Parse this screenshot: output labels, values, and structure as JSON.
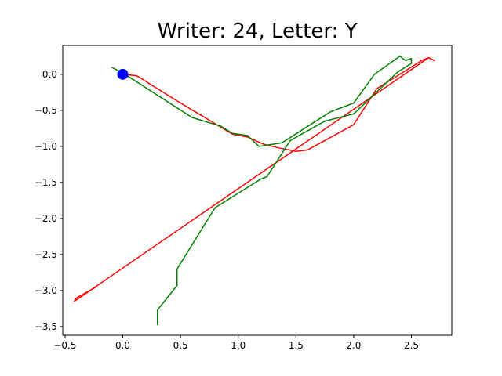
{
  "chart_data": {
    "type": "line",
    "title": "Writer: 24, Letter: Y",
    "xlabel": "",
    "ylabel": "",
    "xlim": [
      -0.52,
      2.85
    ],
    "ylim": [
      -3.62,
      0.4
    ],
    "grid": false,
    "x_ticks": [
      -0.5,
      0.0,
      0.5,
      1.0,
      1.5,
      2.0,
      2.5
    ],
    "x_tick_labels": [
      "−0.5",
      "0.0",
      "0.5",
      "1.0",
      "1.5",
      "2.0",
      "2.5"
    ],
    "y_ticks": [
      0.0,
      -0.5,
      -1.0,
      -1.5,
      -2.0,
      -2.5,
      -3.0,
      -3.5
    ],
    "y_tick_labels": [
      "0.0",
      "−0.5",
      "−1.0",
      "−1.5",
      "−2.0",
      "−2.5",
      "−3.0",
      "−3.5"
    ],
    "start_marker": {
      "x": 0.0,
      "y": 0.0,
      "color": "#0000ff"
    },
    "series": [
      {
        "color": "#ff0000",
        "x": [
          0.0,
          0.12,
          0.45,
          0.95,
          1.08,
          1.22,
          1.35,
          1.5,
          1.6,
          2.0,
          2.2,
          2.6,
          2.65,
          2.7,
          2.65,
          -0.42,
          -0.4,
          -0.23
        ],
        "y": [
          0.0,
          -0.02,
          -0.35,
          -0.83,
          -0.87,
          -0.97,
          -1.02,
          -1.07,
          -1.05,
          -0.7,
          -0.2,
          0.2,
          0.23,
          0.19,
          0.23,
          -3.15,
          -3.1,
          -2.95
        ]
      },
      {
        "color": "#008000",
        "x": [
          -0.1,
          0.0,
          0.6,
          0.85,
          0.95,
          1.08,
          1.18,
          1.38,
          1.8,
          2.0,
          2.18,
          2.4,
          2.45,
          2.5,
          2.5,
          2.38,
          2.0,
          1.75,
          1.45,
          1.25,
          1.2,
          0.8,
          0.47,
          0.47,
          0.3,
          0.3
        ],
        "y": [
          0.1,
          0.02,
          -0.6,
          -0.72,
          -0.82,
          -0.85,
          -1.0,
          -0.95,
          -0.52,
          -0.4,
          0.0,
          0.25,
          0.19,
          0.22,
          0.15,
          0.03,
          -0.55,
          -0.65,
          -0.92,
          -1.42,
          -1.45,
          -1.85,
          -2.7,
          -2.93,
          -3.27,
          -3.48
        ]
      }
    ]
  }
}
